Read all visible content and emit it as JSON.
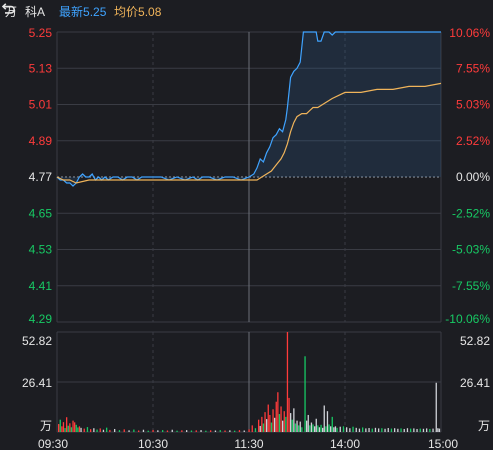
{
  "header": {
    "unit": "万",
    "name": "科A",
    "latest_label": "最新",
    "latest_value": "5.25",
    "avg_label": "均价",
    "avg_value": "5.08"
  },
  "colors": {
    "background": "#1c1d22",
    "grid": "#3a3c44",
    "up": "#ff3b3b",
    "down": "#17c964",
    "flat": "#cfd2d8",
    "price_line": "#3fa3ff",
    "avg_line": "#f0b45a",
    "latest_label": "#3fa3ff",
    "avg_label": "#f0b45a"
  },
  "icons": {
    "refresh": "refresh-icon"
  },
  "chart_data": {
    "type": "line",
    "prev_close": 4.77,
    "x_ticks": [
      "09:30",
      "10:30",
      "11:30",
      "14:00",
      "15:00"
    ],
    "price_axis": {
      "ylim": [
        4.29,
        5.25
      ],
      "ticks": [
        "5.25",
        "5.13",
        "5.01",
        "4.89",
        "4.77",
        "4.65",
        "4.53",
        "4.41",
        "4.29"
      ],
      "pct_ticks": [
        "10.06%",
        "7.55%",
        "5.03%",
        "2.52%",
        "0.00%",
        "-2.52%",
        "-5.03%",
        "-7.55%",
        "-10.06%"
      ]
    },
    "volume_axis": {
      "ylim": [
        0,
        52.82
      ],
      "ticks": [
        "52.82",
        "26.41"
      ],
      "unit": "万"
    },
    "series": [
      {
        "name": "最新",
        "points": [
          [
            0,
            4.77
          ],
          [
            2,
            4.76
          ],
          [
            4,
            4.76
          ],
          [
            6,
            4.75
          ],
          [
            8,
            4.75
          ],
          [
            10,
            4.74
          ],
          [
            12,
            4.75
          ],
          [
            14,
            4.77
          ],
          [
            16,
            4.78
          ],
          [
            18,
            4.77
          ],
          [
            20,
            4.77
          ],
          [
            22,
            4.78
          ],
          [
            24,
            4.76
          ],
          [
            26,
            4.77
          ],
          [
            28,
            4.76
          ],
          [
            30,
            4.77
          ],
          [
            32,
            4.76
          ],
          [
            35,
            4.77
          ],
          [
            38,
            4.77
          ],
          [
            41,
            4.76
          ],
          [
            44,
            4.77
          ],
          [
            47,
            4.77
          ],
          [
            50,
            4.76
          ],
          [
            53,
            4.77
          ],
          [
            56,
            4.77
          ],
          [
            60,
            4.77
          ],
          [
            65,
            4.77
          ],
          [
            70,
            4.76
          ],
          [
            75,
            4.77
          ],
          [
            80,
            4.76
          ],
          [
            85,
            4.77
          ],
          [
            88,
            4.76
          ],
          [
            91,
            4.77
          ],
          [
            95,
            4.77
          ],
          [
            100,
            4.76
          ],
          [
            105,
            4.77
          ],
          [
            110,
            4.77
          ],
          [
            115,
            4.76
          ],
          [
            120,
            4.77
          ],
          [
            123,
            4.78
          ],
          [
            125,
            4.8
          ],
          [
            127,
            4.83
          ],
          [
            129,
            4.82
          ],
          [
            131,
            4.85
          ],
          [
            133,
            4.87
          ],
          [
            135,
            4.9
          ],
          [
            137,
            4.91
          ],
          [
            139,
            4.93
          ],
          [
            141,
            4.92
          ],
          [
            143,
            4.96
          ],
          [
            144,
            5.0
          ],
          [
            145,
            5.05
          ],
          [
            146,
            5.1
          ],
          [
            148,
            5.12
          ],
          [
            150,
            5.13
          ],
          [
            152,
            5.15
          ],
          [
            153,
            5.2
          ],
          [
            154,
            5.25
          ],
          [
            158,
            5.25
          ],
          [
            160,
            5.25
          ],
          [
            162,
            5.25
          ],
          [
            163,
            5.22
          ],
          [
            165,
            5.22
          ],
          [
            167,
            5.25
          ],
          [
            170,
            5.25
          ],
          [
            172,
            5.24
          ],
          [
            174,
            5.25
          ],
          [
            185,
            5.25
          ],
          [
            200,
            5.25
          ],
          [
            220,
            5.25
          ],
          [
            240,
            5.25
          ]
        ]
      },
      {
        "name": "均价",
        "points": [
          [
            0,
            4.77
          ],
          [
            4,
            4.76
          ],
          [
            8,
            4.76
          ],
          [
            12,
            4.75
          ],
          [
            20,
            4.76
          ],
          [
            30,
            4.76
          ],
          [
            45,
            4.76
          ],
          [
            60,
            4.76
          ],
          [
            80,
            4.76
          ],
          [
            100,
            4.76
          ],
          [
            120,
            4.76
          ],
          [
            125,
            4.76
          ],
          [
            128,
            4.77
          ],
          [
            131,
            4.78
          ],
          [
            134,
            4.79
          ],
          [
            137,
            4.81
          ],
          [
            140,
            4.83
          ],
          [
            142,
            4.85
          ],
          [
            144,
            4.88
          ],
          [
            146,
            4.92
          ],
          [
            148,
            4.95
          ],
          [
            150,
            4.97
          ],
          [
            153,
            4.98
          ],
          [
            156,
            4.98
          ],
          [
            158,
            4.99
          ],
          [
            160,
            5.0
          ],
          [
            163,
            5.0
          ],
          [
            166,
            5.01
          ],
          [
            169,
            5.02
          ],
          [
            172,
            5.03
          ],
          [
            176,
            5.04
          ],
          [
            180,
            5.05
          ],
          [
            190,
            5.05
          ],
          [
            200,
            5.06
          ],
          [
            210,
            5.06
          ],
          [
            220,
            5.07
          ],
          [
            230,
            5.07
          ],
          [
            240,
            5.08
          ]
        ]
      }
    ],
    "volume_bars": [
      [
        1,
        4.2,
        "u"
      ],
      [
        2,
        6.5,
        "d"
      ],
      [
        3,
        3.0,
        "u"
      ],
      [
        4,
        5.2,
        "u"
      ],
      [
        5,
        2.1,
        "d"
      ],
      [
        6,
        7.8,
        "u"
      ],
      [
        7,
        3.3,
        "d"
      ],
      [
        8,
        4.6,
        "u"
      ],
      [
        9,
        2.5,
        "d"
      ],
      [
        10,
        6.0,
        "u"
      ],
      [
        11,
        5.1,
        "u"
      ],
      [
        12,
        3.8,
        "d"
      ],
      [
        13,
        2.4,
        "d"
      ],
      [
        14,
        3.0,
        "u"
      ],
      [
        15,
        2.2,
        "f"
      ],
      [
        17,
        1.8,
        "u"
      ],
      [
        19,
        2.6,
        "d"
      ],
      [
        21,
        1.5,
        "u"
      ],
      [
        23,
        2.0,
        "f"
      ],
      [
        25,
        1.3,
        "d"
      ],
      [
        27,
        1.9,
        "u"
      ],
      [
        29,
        1.2,
        "f"
      ],
      [
        31,
        2.3,
        "d"
      ],
      [
        33,
        1.1,
        "u"
      ],
      [
        36,
        1.6,
        "f"
      ],
      [
        39,
        1.0,
        "d"
      ],
      [
        42,
        1.4,
        "u"
      ],
      [
        45,
        0.9,
        "f"
      ],
      [
        48,
        1.3,
        "d"
      ],
      [
        51,
        0.8,
        "u"
      ],
      [
        54,
        1.2,
        "f"
      ],
      [
        57,
        0.7,
        "d"
      ],
      [
        60,
        1.1,
        "u"
      ],
      [
        63,
        0.9,
        "f"
      ],
      [
        66,
        1.0,
        "d"
      ],
      [
        69,
        0.8,
        "u"
      ],
      [
        72,
        1.2,
        "f"
      ],
      [
        75,
        0.7,
        "d"
      ],
      [
        78,
        0.9,
        "u"
      ],
      [
        81,
        1.0,
        "f"
      ],
      [
        84,
        0.8,
        "d"
      ],
      [
        87,
        0.9,
        "u"
      ],
      [
        90,
        1.0,
        "f"
      ],
      [
        93,
        0.7,
        "d"
      ],
      [
        96,
        0.9,
        "u"
      ],
      [
        99,
        0.8,
        "f"
      ],
      [
        102,
        1.0,
        "d"
      ],
      [
        105,
        0.8,
        "u"
      ],
      [
        108,
        0.9,
        "f"
      ],
      [
        111,
        0.7,
        "d"
      ],
      [
        114,
        1.0,
        "u"
      ],
      [
        117,
        0.8,
        "f"
      ],
      [
        120,
        1.4,
        "u"
      ],
      [
        122,
        3.5,
        "u"
      ],
      [
        124,
        2.0,
        "d"
      ],
      [
        126,
        6.5,
        "u"
      ],
      [
        127,
        3.2,
        "f"
      ],
      [
        128,
        8.0,
        "u"
      ],
      [
        129,
        4.5,
        "d"
      ],
      [
        130,
        10.5,
        "u"
      ],
      [
        131,
        6.8,
        "f"
      ],
      [
        132,
        14.5,
        "u"
      ],
      [
        133,
        9.0,
        "u"
      ],
      [
        134,
        5.0,
        "d"
      ],
      [
        135,
        12.0,
        "u"
      ],
      [
        136,
        7.5,
        "f"
      ],
      [
        137,
        16.0,
        "u"
      ],
      [
        138,
        21.0,
        "u"
      ],
      [
        139,
        9.5,
        "d"
      ],
      [
        140,
        13.5,
        "u"
      ],
      [
        141,
        6.0,
        "f"
      ],
      [
        142,
        11.0,
        "u"
      ],
      [
        143,
        8.0,
        "d"
      ],
      [
        144,
        52.82,
        "u"
      ],
      [
        145,
        18.0,
        "u"
      ],
      [
        146,
        10.0,
        "f"
      ],
      [
        147,
        6.5,
        "d"
      ],
      [
        148,
        12.5,
        "f"
      ],
      [
        149,
        4.5,
        "d"
      ],
      [
        150,
        6.0,
        "f"
      ],
      [
        151,
        3.5,
        "d"
      ],
      [
        152,
        5.5,
        "f"
      ],
      [
        153,
        2.5,
        "d"
      ],
      [
        155,
        40.0,
        "d"
      ],
      [
        156,
        6.0,
        "f"
      ],
      [
        157,
        9.0,
        "f"
      ],
      [
        158,
        3.5,
        "d"
      ],
      [
        159,
        5.0,
        "f"
      ],
      [
        160,
        4.0,
        "d"
      ],
      [
        161,
        3.0,
        "f"
      ],
      [
        162,
        7.0,
        "f"
      ],
      [
        163,
        3.5,
        "d"
      ],
      [
        164,
        2.5,
        "f"
      ],
      [
        165,
        3.8,
        "d"
      ],
      [
        166,
        2.2,
        "f"
      ],
      [
        167,
        14.0,
        "f"
      ],
      [
        168,
        3.0,
        "d"
      ],
      [
        169,
        11.0,
        "f"
      ],
      [
        170,
        4.0,
        "d"
      ],
      [
        171,
        3.0,
        "f"
      ],
      [
        172,
        8.0,
        "d"
      ],
      [
        173,
        2.5,
        "f"
      ],
      [
        174,
        3.0,
        "f"
      ],
      [
        175,
        2.2,
        "d"
      ],
      [
        177,
        2.8,
        "f"
      ],
      [
        179,
        3.0,
        "d"
      ],
      [
        181,
        2.5,
        "f"
      ],
      [
        183,
        2.0,
        "f"
      ],
      [
        185,
        2.8,
        "d"
      ],
      [
        187,
        2.2,
        "f"
      ],
      [
        189,
        1.8,
        "f"
      ],
      [
        191,
        2.4,
        "d"
      ],
      [
        193,
        1.9,
        "f"
      ],
      [
        195,
        2.1,
        "f"
      ],
      [
        197,
        1.8,
        "d"
      ],
      [
        199,
        2.2,
        "f"
      ],
      [
        201,
        1.9,
        "f"
      ],
      [
        203,
        2.0,
        "d"
      ],
      [
        205,
        1.7,
        "f"
      ],
      [
        207,
        2.1,
        "f"
      ],
      [
        209,
        1.8,
        "d"
      ],
      [
        211,
        2.0,
        "f"
      ],
      [
        213,
        1.7,
        "f"
      ],
      [
        215,
        1.9,
        "d"
      ],
      [
        217,
        1.6,
        "f"
      ],
      [
        219,
        2.0,
        "f"
      ],
      [
        221,
        1.8,
        "d"
      ],
      [
        223,
        1.9,
        "f"
      ],
      [
        225,
        1.6,
        "f"
      ],
      [
        227,
        1.8,
        "d"
      ],
      [
        229,
        1.7,
        "f"
      ],
      [
        231,
        1.9,
        "f"
      ],
      [
        233,
        1.6,
        "d"
      ],
      [
        235,
        1.8,
        "f"
      ],
      [
        237,
        26.0,
        "f"
      ],
      [
        238,
        2.0,
        "f"
      ],
      [
        239,
        1.8,
        "f"
      ]
    ]
  }
}
